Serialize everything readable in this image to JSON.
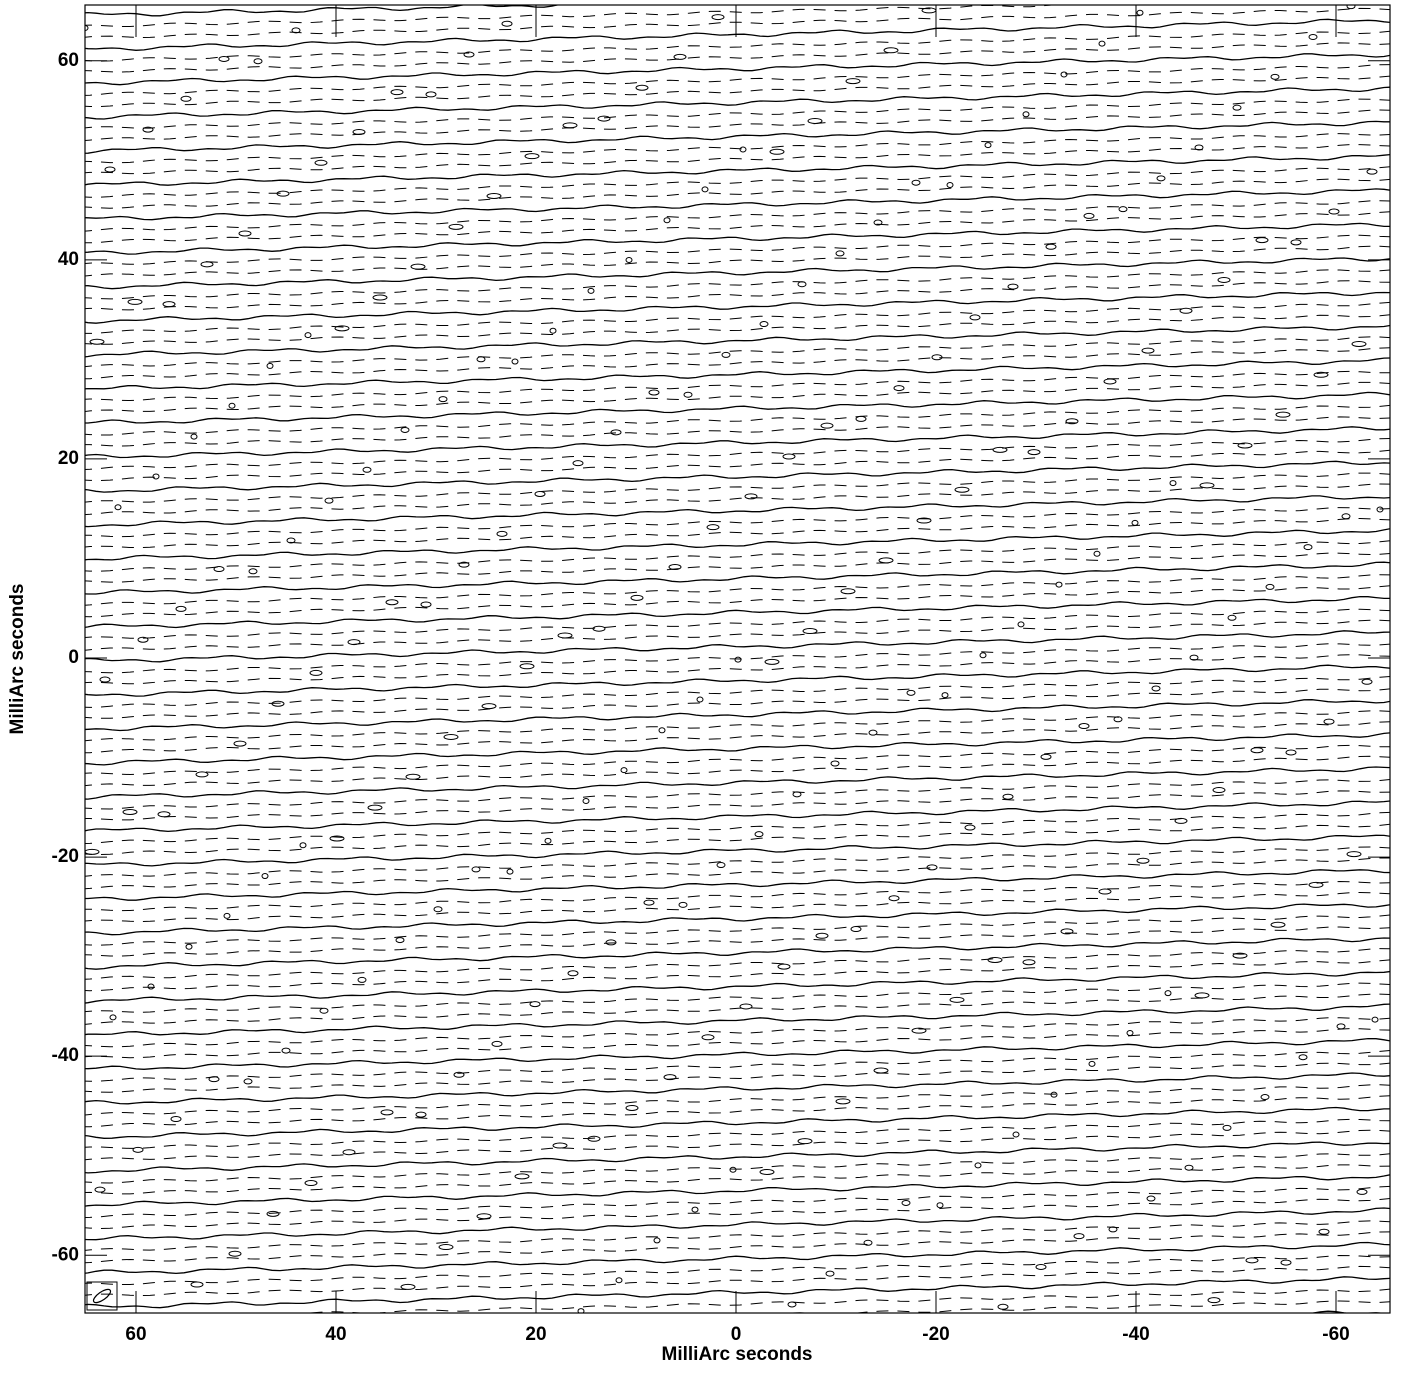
{
  "chart_data": {
    "type": "contour",
    "xlabel": "MilliArc seconds",
    "ylabel": "MilliArc seconds",
    "xlim": [
      65.1,
      -65.4
    ],
    "ylim": [
      -65.8,
      65.6
    ],
    "xticks": [
      60,
      40,
      20,
      0,
      -20,
      -40,
      -60
    ],
    "yticks": [
      60,
      40,
      20,
      0,
      -20,
      -40,
      -60
    ],
    "color": "#000000"
  }
}
